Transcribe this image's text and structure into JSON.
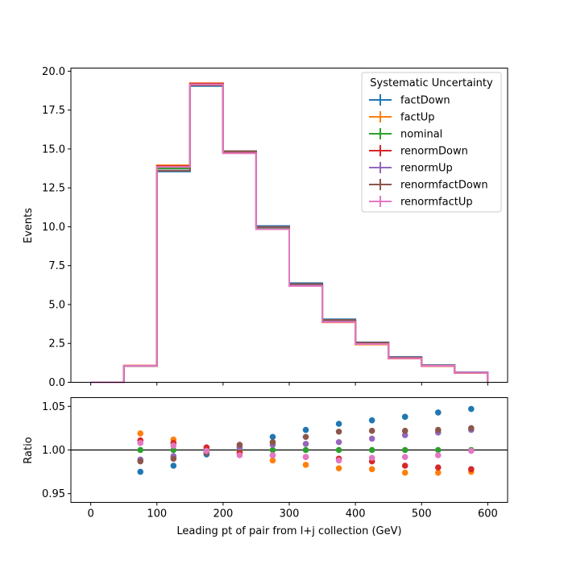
{
  "chart_data": [
    {
      "type": "line",
      "subtype": "histogram-step",
      "xlabel": "",
      "ylabel": "Events",
      "xlim": [
        -30,
        630
      ],
      "ylim": [
        0,
        20.2
      ],
      "yticks": [
        0.0,
        2.5,
        5.0,
        7.5,
        10.0,
        12.5,
        15.0,
        17.5,
        20.0
      ],
      "ytick_labels": [
        "0.0",
        "2.5",
        "5.0",
        "7.5",
        "10.0",
        "12.5",
        "15.0",
        "17.5",
        "20.0"
      ],
      "bin_edges": [
        0,
        50,
        100,
        150,
        200,
        250,
        300,
        350,
        400,
        450,
        500,
        550,
        600
      ],
      "legend": {
        "title": "Systematic Uncertainty",
        "placement": "top-right"
      },
      "series": [
        {
          "name": "factDown",
          "color": "#1f77b4",
          "values": [
            0.0,
            1.06,
            13.55,
            19.05,
            14.86,
            10.05,
            6.38,
            4.05,
            2.57,
            1.63,
            1.11,
            0.65
          ]
        },
        {
          "name": "factUp",
          "color": "#ff7f0e",
          "values": [
            0.0,
            1.08,
            13.95,
            19.23,
            14.75,
            9.84,
            6.19,
            3.85,
            2.43,
            1.53,
            1.04,
            0.61
          ]
        },
        {
          "name": "nominal",
          "color": "#2ca02c",
          "values": [
            0.0,
            1.06,
            13.75,
            19.15,
            14.8,
            9.9,
            6.24,
            3.93,
            2.49,
            1.57,
            1.07,
            0.62
          ]
        },
        {
          "name": "renormDown",
          "color": "#d62728",
          "values": [
            0.0,
            1.07,
            13.9,
            19.2,
            14.75,
            9.84,
            6.19,
            3.89,
            2.46,
            1.54,
            1.05,
            0.61
          ]
        },
        {
          "name": "renormUp",
          "color": "#9467bd",
          "values": [
            0.0,
            1.05,
            13.62,
            19.1,
            14.85,
            9.97,
            6.28,
            3.97,
            2.52,
            1.6,
            1.09,
            0.63
          ]
        },
        {
          "name": "renormfactDown",
          "color": "#8c564b",
          "values": [
            0.0,
            1.05,
            13.6,
            19.1,
            14.86,
            9.99,
            6.32,
            4.01,
            2.55,
            1.6,
            1.09,
            0.63
          ]
        },
        {
          "name": "renormfactUp",
          "color": "#e377c2",
          "values": [
            0.0,
            1.07,
            13.85,
            19.15,
            14.72,
            9.84,
            6.19,
            3.88,
            2.46,
            1.55,
            1.06,
            0.62
          ]
        }
      ]
    },
    {
      "type": "scatter",
      "xlabel": "Leading pt of pair from l+j collection (GeV)",
      "ylabel": "Ratio",
      "xlim": [
        -30,
        630
      ],
      "ylim": [
        0.94,
        1.06
      ],
      "xticks": [
        0,
        100,
        200,
        300,
        400,
        500,
        600
      ],
      "xtick_labels": [
        "0",
        "100",
        "200",
        "300",
        "400",
        "500",
        "600"
      ],
      "yticks": [
        0.95,
        1.0,
        1.05
      ],
      "ytick_labels": [
        "0.95",
        "1.00",
        "1.05"
      ],
      "reference_line": 1.0,
      "x": [
        75,
        125,
        175,
        225,
        275,
        325,
        375,
        425,
        475,
        525,
        575
      ],
      "series": [
        {
          "name": "factDown",
          "color": "#1f77b4",
          "values": [
            0.975,
            0.982,
            0.995,
            1.003,
            1.015,
            1.023,
            1.03,
            1.034,
            1.038,
            1.043,
            1.047
          ]
        },
        {
          "name": "factUp",
          "color": "#ff7f0e",
          "values": [
            1.019,
            1.012,
            1.002,
            0.996,
            0.988,
            0.983,
            0.979,
            0.978,
            0.974,
            0.974,
            0.975
          ]
        },
        {
          "name": "nominal",
          "color": "#2ca02c",
          "values": [
            1.0,
            1.0,
            1.0,
            1.0,
            1.0,
            1.0,
            1.0,
            1.0,
            1.0,
            1.0,
            1.0
          ]
        },
        {
          "name": "renormDown",
          "color": "#d62728",
          "values": [
            1.011,
            1.008,
            1.003,
            0.997,
            0.994,
            0.992,
            0.99,
            0.987,
            0.982,
            0.98,
            0.978
          ]
        },
        {
          "name": "renormUp",
          "color": "#9467bd",
          "values": [
            0.989,
            0.993,
            0.997,
            1.003,
            1.006,
            1.007,
            1.009,
            1.013,
            1.017,
            1.02,
            1.023
          ]
        },
        {
          "name": "renormfactDown",
          "color": "#8c564b",
          "values": [
            0.987,
            0.99,
            0.997,
            1.006,
            1.009,
            1.015,
            1.021,
            1.022,
            1.022,
            1.023,
            1.025
          ]
        },
        {
          "name": "renormfactUp",
          "color": "#e377c2",
          "values": [
            1.008,
            1.005,
            0.999,
            0.994,
            0.994,
            0.992,
            0.988,
            0.991,
            0.992,
            0.994,
            0.999
          ]
        }
      ]
    }
  ]
}
